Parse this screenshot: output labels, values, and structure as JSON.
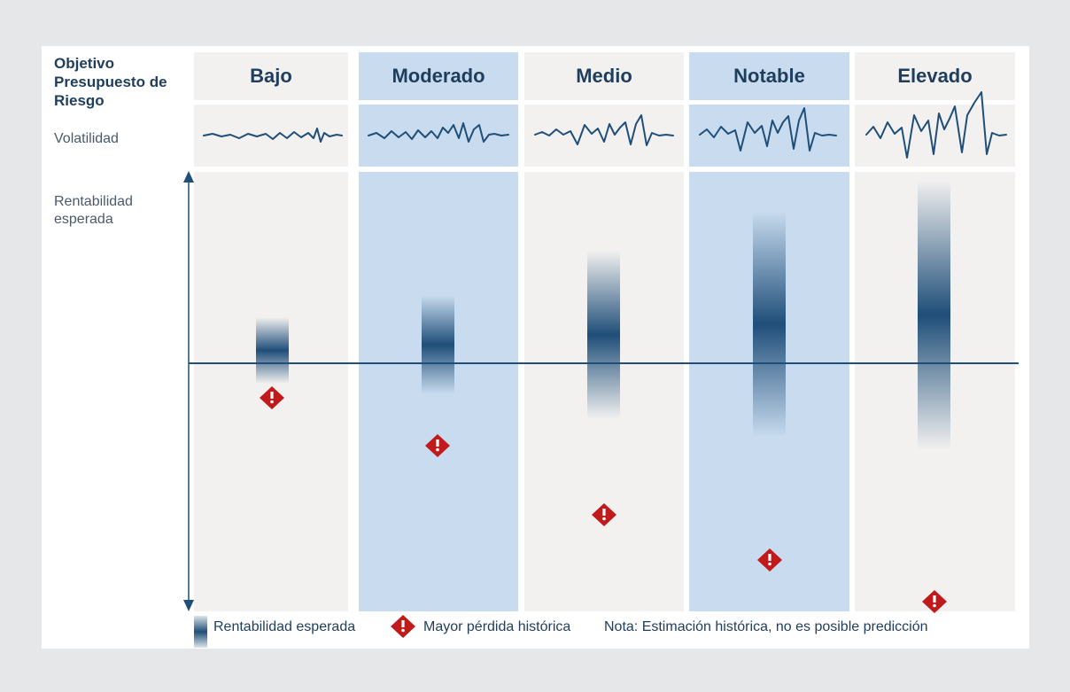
{
  "header": {
    "title": "Objetivo Presupuesto de Riesgo",
    "volatility_label": "Volatilidad",
    "return_label": "Rentabilidad esperada"
  },
  "columns": [
    {
      "label": "Bajo",
      "highlighted": false
    },
    {
      "label": "Moderado",
      "highlighted": true
    },
    {
      "label": "Medio",
      "highlighted": false
    },
    {
      "label": "Notable",
      "highlighted": true
    },
    {
      "label": "Elevado",
      "highlighted": false
    }
  ],
  "legend": {
    "expected_return": "Rentabilidad esperada",
    "max_loss": "Mayor pérdida histórica",
    "note": "Nota: Estimación histórica, no es posible predicción"
  },
  "colors": {
    "navy": "#1f4e79",
    "highlight": "#c9dcef",
    "neutral": "#f2f1f0",
    "warning": "#c01a1a"
  }
}
